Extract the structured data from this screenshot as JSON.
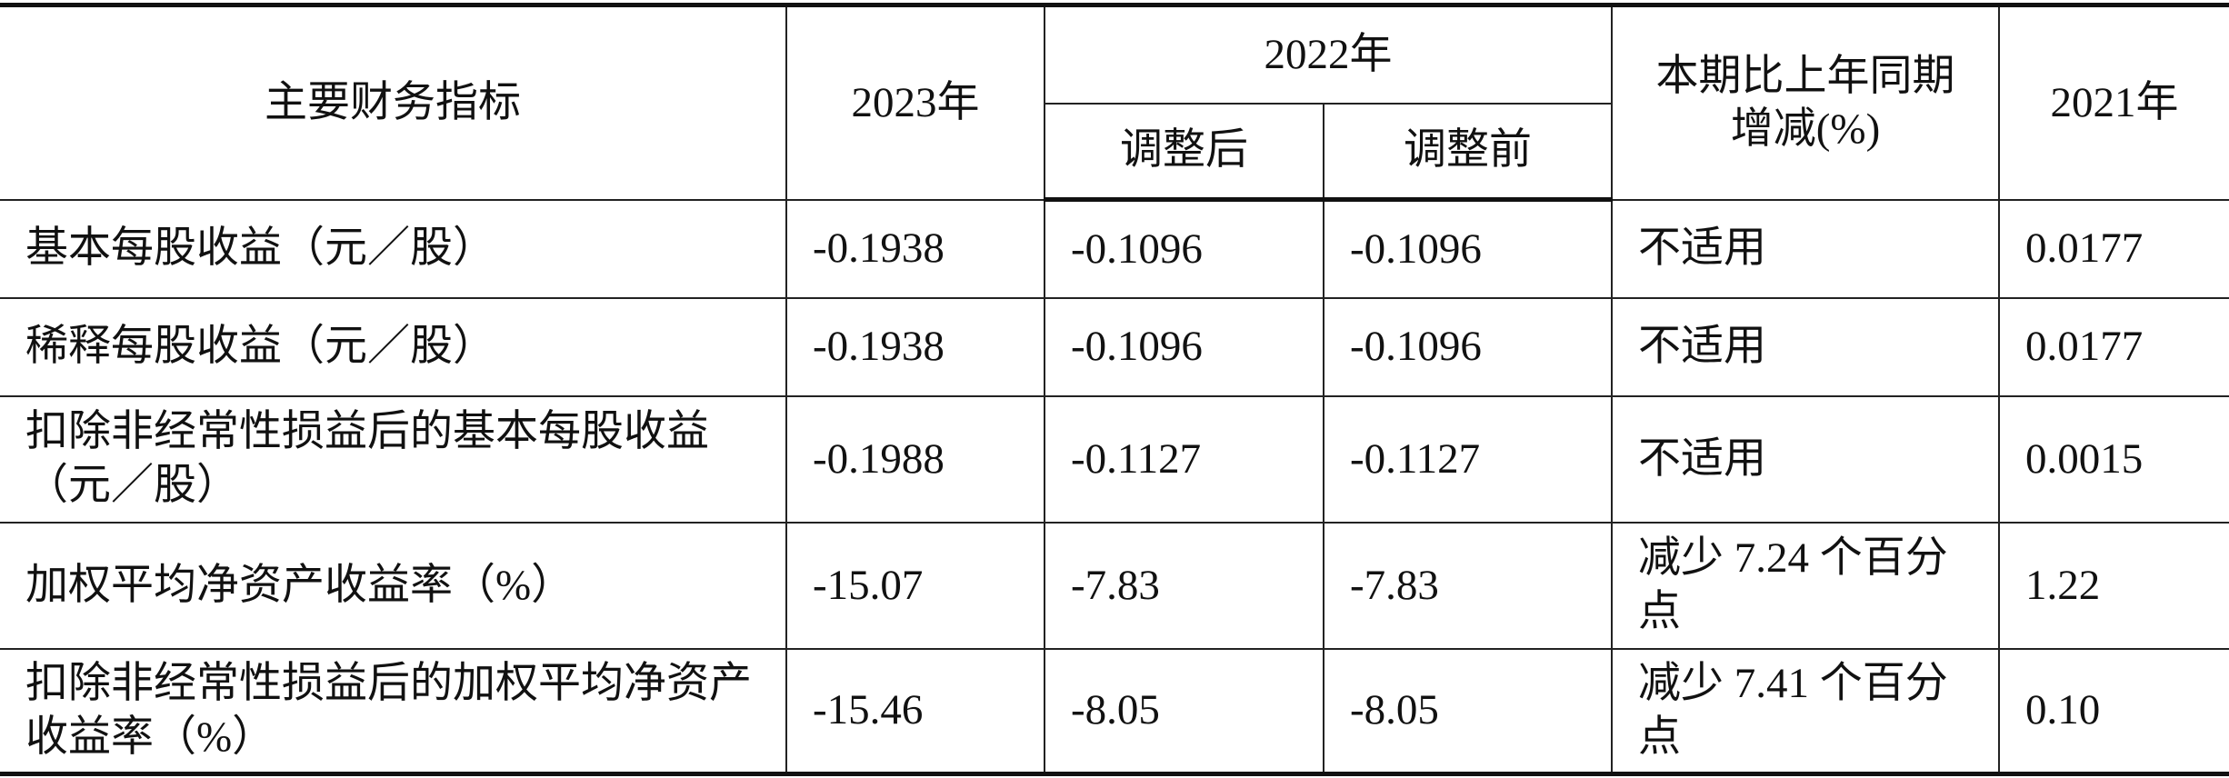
{
  "table": {
    "header": {
      "indicator": "主要财务指标",
      "y2023": "2023年",
      "y2022": "2022年",
      "adjusted": "调整后",
      "before": "调整前",
      "change": "本期比上年同期增减(%)",
      "y2021": "2021年"
    },
    "rows": [
      [
        "基本每股收益（元／股）",
        "-0.1938",
        "-0.1096",
        "-0.1096",
        "不适用",
        "0.0177"
      ],
      [
        "稀释每股收益（元／股）",
        "-0.1938",
        "-0.1096",
        "-0.1096",
        "不适用",
        "0.0177"
      ],
      [
        "扣除非经常性损益后的基本每股收益（元／股）",
        "-0.1988",
        "-0.1127",
        "-0.1127",
        "不适用",
        "0.0015"
      ],
      [
        "加权平均净资产收益率（%）",
        "-15.07",
        "-7.83",
        "-7.83",
        "减少 7.24 个百分点",
        "1.22"
      ],
      [
        "扣除非经常性损益后的加权平均净资产收益率（%）",
        "-15.46",
        "-8.05",
        "-8.05",
        "减少 7.41 个百分点",
        "0.10"
      ]
    ]
  }
}
